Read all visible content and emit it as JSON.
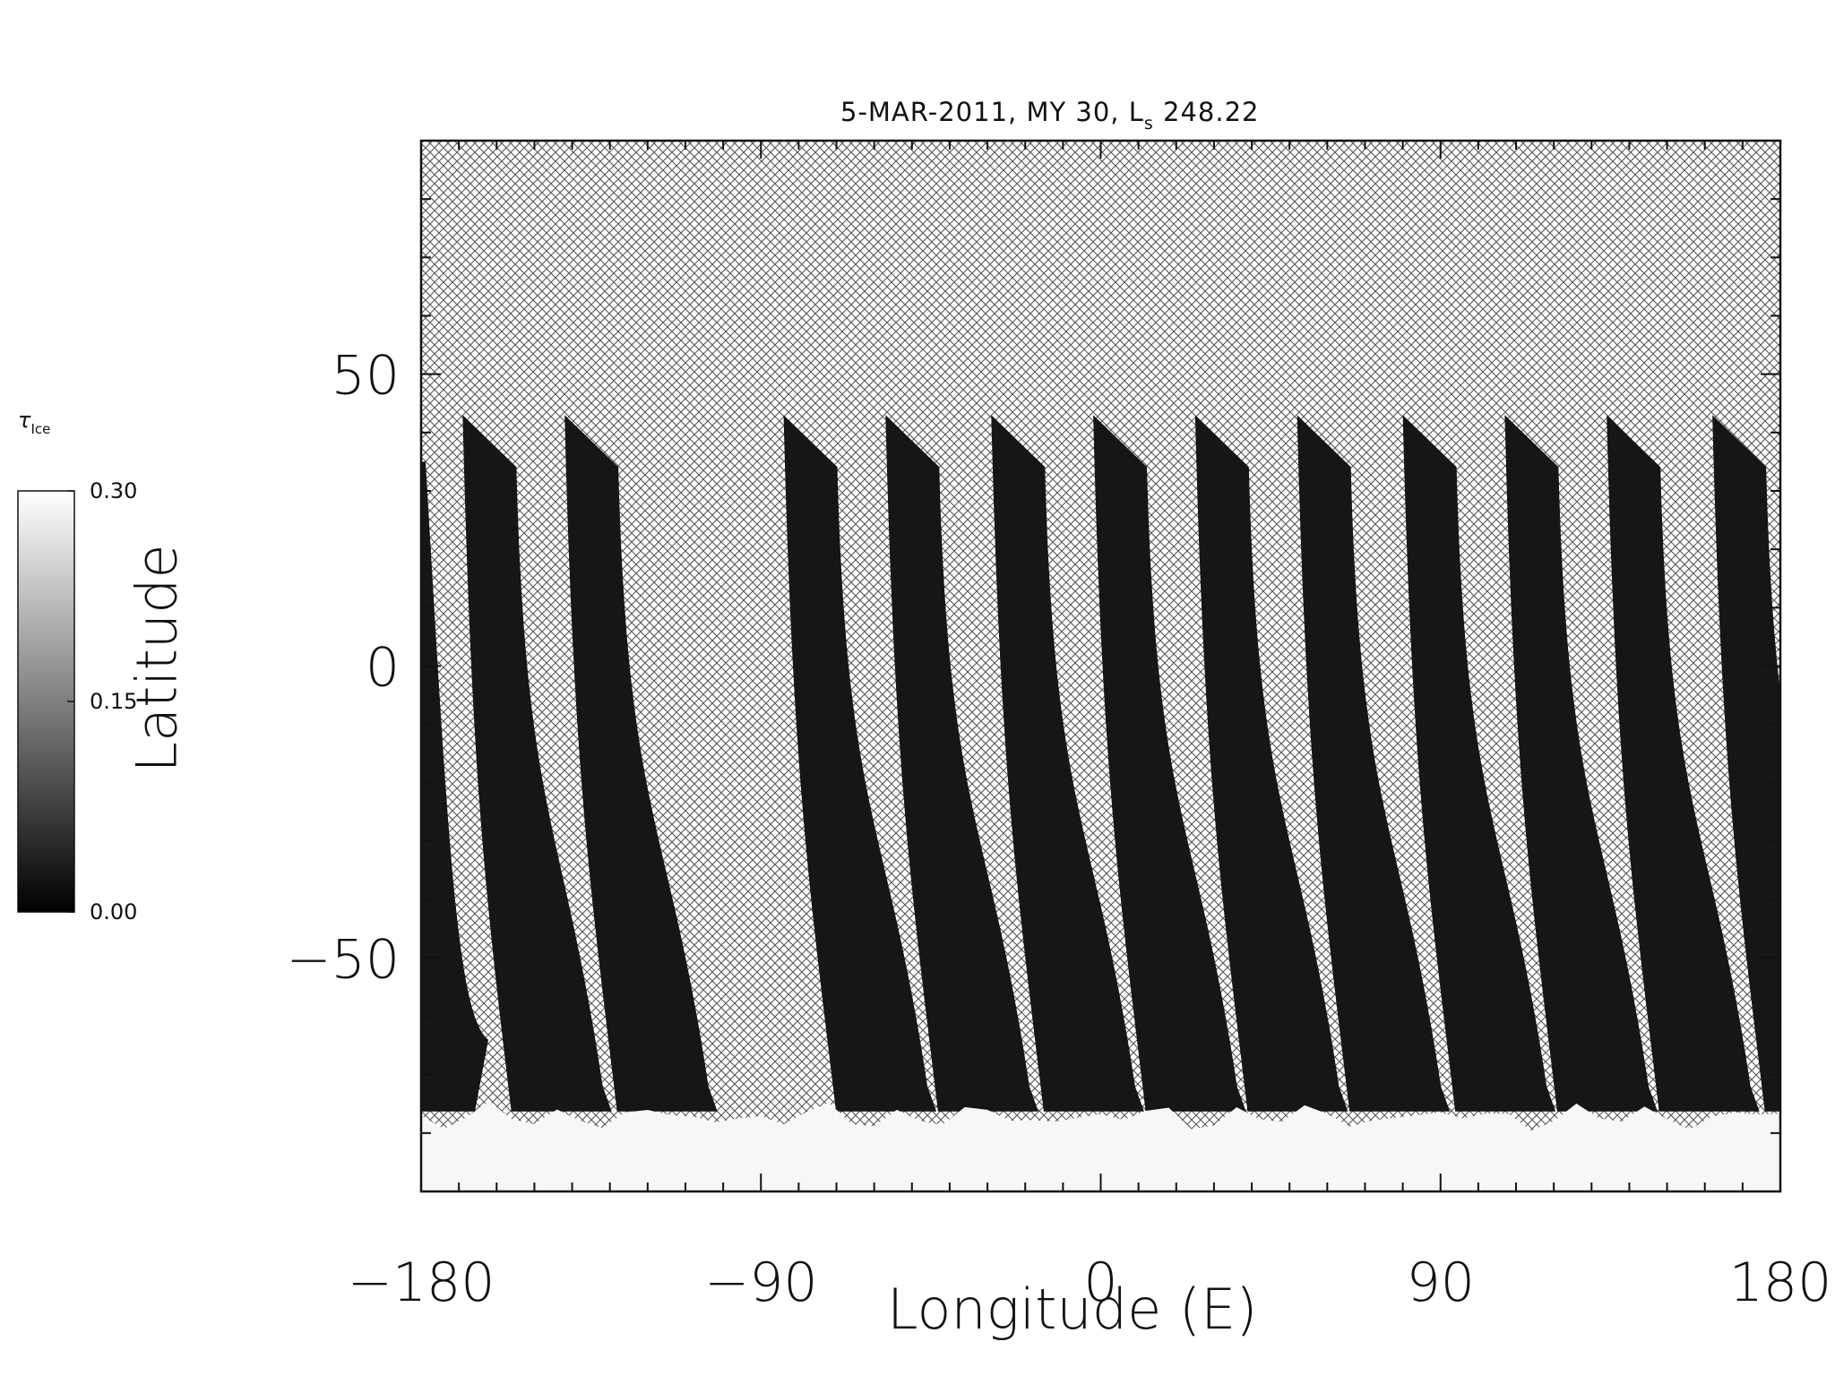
{
  "chart_data": {
    "type": "heatmap",
    "title_main": "5-MAR-2011, MY 30,  L",
    "title_sub": "s",
    "title_value": " 248.22",
    "xlabel": "Longitude (E)",
    "ylabel": "Latitude",
    "xlim": [
      -180,
      180
    ],
    "ylim": [
      -90,
      90
    ],
    "xticks": [
      -180,
      -90,
      0,
      90,
      180
    ],
    "xtick_labels": [
      "−180",
      "−90",
      "0",
      "90",
      "180"
    ],
    "yticks": [
      -50,
      0,
      50
    ],
    "ytick_labels": [
      "−50",
      "0",
      "50"
    ],
    "colorbar": {
      "title": "τ",
      "title_sub": "Ice",
      "min": 0.0,
      "max": 0.3,
      "tick_values": [
        0.0,
        0.15,
        0.3
      ],
      "tick_labels": [
        "0.00",
        "0.15",
        "0.30"
      ]
    },
    "missing_data_pattern": "crosshatch",
    "swaths": [
      {
        "lon_top": -169,
        "lon_bottom": -158
      },
      {
        "lon_top": -142,
        "lon_bottom": -130
      },
      {
        "lon_top": -84,
        "lon_bottom": -72
      },
      {
        "lon_top": -57,
        "lon_bottom": -45
      },
      {
        "lon_top": -29,
        "lon_bottom": -17
      },
      {
        "lon_top": -2,
        "lon_bottom": 10
      },
      {
        "lon_top": 25,
        "lon_bottom": 37
      },
      {
        "lon_top": 52,
        "lon_bottom": 64
      },
      {
        "lon_top": 80,
        "lon_bottom": 92
      },
      {
        "lon_top": 107,
        "lon_bottom": 119
      },
      {
        "lon_top": 134,
        "lon_bottom": 146
      },
      {
        "lon_top": 162,
        "lon_bottom": 174
      }
    ],
    "swath_lat_top": 43,
    "swath_lat_bottom": -72,
    "polar_ice_lat": -75,
    "colors": {
      "hatch": "#555555",
      "swath": "#161616",
      "ice": "#f7f7f7"
    }
  }
}
